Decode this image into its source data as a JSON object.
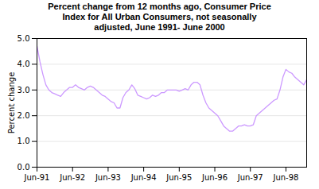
{
  "chart_data": {
    "type": "line",
    "title": "Percent change from 12 months ago, Consumer Price\nIndex for All Urban Consumers, not seasonally\nadjusted, June 1991- June 2000",
    "ylabel": "Percent change",
    "color": "#CC99FF",
    "categories": [
      "Jun-91",
      null,
      null,
      null,
      null,
      null,
      null,
      null,
      null,
      null,
      null,
      null,
      "Jun-92",
      null,
      null,
      null,
      null,
      null,
      null,
      null,
      null,
      null,
      null,
      null,
      "Jun-93",
      null,
      null,
      null,
      null,
      null,
      null,
      null,
      null,
      null,
      null,
      null,
      "Jun-94",
      null,
      null,
      null,
      null,
      null,
      null,
      null,
      null,
      null,
      null,
      null,
      "Jun-95",
      null,
      null,
      null,
      null,
      null,
      null,
      null,
      null,
      null,
      null,
      null,
      "Jun-96",
      null,
      null,
      null,
      null,
      null,
      null,
      null,
      null,
      null,
      null,
      null,
      "Jun-97",
      null,
      null,
      null,
      null,
      null,
      null,
      null,
      null,
      null,
      null,
      null,
      "Jun-98",
      null,
      null,
      null,
      null,
      null,
      null,
      null
    ],
    "values": [
      4.7,
      4.1,
      3.6,
      3.2,
      3.0,
      2.9,
      2.85,
      2.8,
      2.75,
      2.9,
      3.0,
      3.1,
      3.1,
      3.2,
      3.1,
      3.05,
      3.0,
      3.1,
      3.15,
      3.1,
      3.0,
      2.9,
      2.8,
      2.75,
      2.65,
      2.55,
      2.5,
      2.3,
      2.3,
      2.7,
      2.9,
      3.0,
      3.2,
      3.05,
      2.8,
      2.75,
      2.7,
      2.65,
      2.7,
      2.8,
      2.75,
      2.8,
      2.9,
      2.9,
      3.0,
      3.0,
      3.0,
      3.0,
      2.95,
      3.0,
      3.05,
      3.0,
      3.2,
      3.3,
      3.3,
      3.2,
      2.8,
      2.5,
      2.3,
      2.2,
      2.1,
      2.0,
      1.8,
      1.6,
      1.5,
      1.4,
      1.4,
      1.5,
      1.6,
      1.6,
      1.65,
      1.6,
      1.6,
      1.65,
      2.0,
      2.1,
      2.2,
      2.3,
      2.4,
      2.5,
      2.6,
      2.65,
      3.0,
      3.5,
      3.8,
      3.7,
      3.65,
      3.5,
      3.4,
      3.3,
      3.2,
      3.4
    ],
    "ylim": [
      0.0,
      5.0
    ],
    "yticks": [
      {
        "value": 0.0,
        "label": "0.0"
      },
      {
        "value": 1.0,
        "label": "1.0"
      },
      {
        "value": 2.0,
        "label": "2.0"
      },
      {
        "value": 3.0,
        "label": "3.0"
      },
      {
        "value": 4.0,
        "label": "4.0"
      },
      {
        "value": 5.0,
        "label": "5.0"
      }
    ],
    "grid": true
  }
}
